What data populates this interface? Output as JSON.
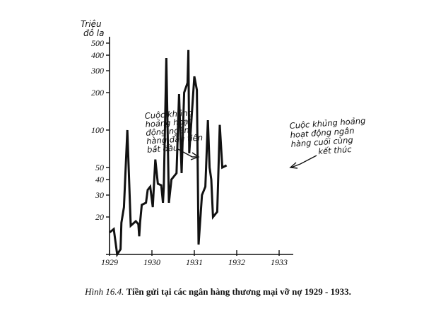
{
  "chart_data": {
    "type": "line",
    "ylabel_line1": "Triệu",
    "ylabel_line2": "đô la",
    "y_scale": "log",
    "ylim": [
      10,
      500
    ],
    "y_ticks": [
      500,
      400,
      300,
      200,
      100,
      50,
      40,
      30,
      20
    ],
    "x_ticks": [
      "1929",
      "1930",
      "1931",
      "1932",
      "1933"
    ],
    "xlim": [
      1929.0,
      1933.25
    ],
    "series": [
      {
        "color": "#111111",
        "points": [
          [
            1929.0,
            15.0
          ],
          [
            1929.1,
            16.0
          ],
          [
            1929.18,
            10.0
          ],
          [
            1929.26,
            11.0
          ],
          [
            1929.28,
            18.0
          ],
          [
            1929.34,
            24.0
          ],
          [
            1929.42,
            100.0
          ],
          [
            1929.5,
            17.0
          ],
          [
            1929.62,
            18.5
          ],
          [
            1929.68,
            17.5
          ],
          [
            1929.7,
            14.0
          ],
          [
            1929.72,
            18.0
          ],
          [
            1929.76,
            25.0
          ],
          [
            1929.86,
            26.0
          ],
          [
            1929.9,
            33.0
          ],
          [
            1929.96,
            35.0
          ],
          [
            1930.02,
            24.0
          ],
          [
            1930.08,
            58.0
          ],
          [
            1930.14,
            37.0
          ],
          [
            1930.22,
            36.0
          ],
          [
            1930.26,
            26.0
          ],
          [
            1930.28,
            35.0
          ],
          [
            1930.34,
            380.0
          ],
          [
            1930.4,
            26.0
          ],
          [
            1930.46,
            40.0
          ],
          [
            1930.58,
            45.0
          ],
          [
            1930.64,
            195.0
          ],
          [
            1930.7,
            45.0
          ],
          [
            1930.76,
            200.0
          ],
          [
            1930.84,
            240.0
          ],
          [
            1930.86,
            440.0
          ],
          [
            1930.88,
            65.0
          ],
          [
            1931.0,
            270.0
          ],
          [
            1931.06,
            210.0
          ],
          [
            1931.1,
            12.0
          ],
          [
            1931.18,
            30.0
          ],
          [
            1931.26,
            35.0
          ],
          [
            1931.32,
            120.0
          ],
          [
            1931.36,
            50.0
          ],
          [
            1931.4,
            40.0
          ],
          [
            1931.44,
            20.0
          ],
          [
            1931.54,
            22.0
          ],
          [
            1931.6,
            110.0
          ],
          [
            1931.66,
            50.0
          ],
          [
            1931.76,
            52.0
          ]
        ]
      }
    ],
    "annotations": [
      {
        "lines": [
          "Cuộc khủng",
          "hoảng hoạt",
          "động ngân",
          "hàng đầu tiên",
          "bắt đầu"
        ]
      },
      {
        "lines": [
          "Cuộc khủng hoảng",
          "hoạt động ngân",
          "hàng cuối cùng",
          "kết thúc"
        ]
      }
    ]
  },
  "caption": {
    "figure": "Hình 16.4.",
    "text": "Tiền gửi tại các ngân hàng thương mại vỡ nợ 1929 - 1933."
  }
}
